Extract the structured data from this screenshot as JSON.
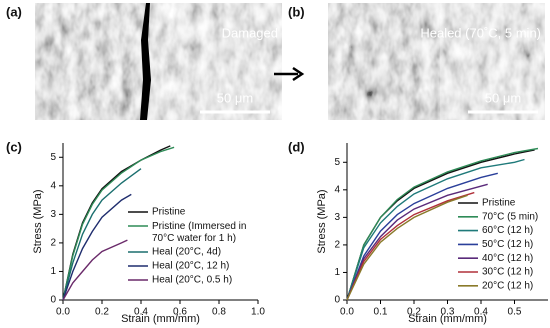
{
  "images": [
    {
      "label": "(a)",
      "caption": "Damaged",
      "scale_bar": "50 μm"
    },
    {
      "label": "(b)",
      "caption": "Healed (70˚C, 5 min)",
      "scale_bar": "50 μm"
    }
  ],
  "chart_data": [
    {
      "type": "line",
      "panel_label": "(c)",
      "x_label": "Strain (mm/mm)",
      "y_label": "Stress (MPa)",
      "xlim": [
        0,
        1
      ],
      "xticks": [
        {
          "value": 0,
          "label": "0.0"
        },
        0.2,
        0.4,
        0.6,
        0.8,
        {
          "value": 1,
          "label": "1.0"
        }
      ],
      "ylim": [
        0,
        5.5
      ],
      "yticks": [
        0,
        1,
        2,
        3,
        4,
        5
      ],
      "series": [
        {
          "name": "Pristine",
          "color": "#111111",
          "x": [
            0,
            0.05,
            0.1,
            0.15,
            0.2,
            0.3,
            0.4,
            0.5,
            0.55
          ],
          "values": [
            0,
            1.6,
            2.7,
            3.4,
            3.9,
            4.5,
            4.9,
            5.25,
            5.4
          ]
        },
        {
          "name": "Pristine (Immersed in\n70°C water for 1 h)",
          "color": "#2e8b57",
          "x": [
            0,
            0.05,
            0.1,
            0.15,
            0.2,
            0.3,
            0.4,
            0.5,
            0.57
          ],
          "values": [
            0,
            1.55,
            2.65,
            3.35,
            3.85,
            4.45,
            4.9,
            5.2,
            5.35
          ]
        },
        {
          "name": "Heal (20°C, 4d)",
          "color": "#1b6f6f",
          "x": [
            0,
            0.05,
            0.1,
            0.15,
            0.2,
            0.3,
            0.4
          ],
          "values": [
            0,
            1.3,
            2.3,
            3.0,
            3.5,
            4.1,
            4.6
          ]
        },
        {
          "name": "Heal (20°C, 12 h)",
          "color": "#1f2d6e",
          "x": [
            0,
            0.05,
            0.1,
            0.15,
            0.2,
            0.3,
            0.35
          ],
          "values": [
            0,
            1.0,
            1.8,
            2.4,
            2.9,
            3.5,
            3.7
          ]
        },
        {
          "name": "Heal (20°C, 0.5 h)",
          "color": "#6a2a6a",
          "x": [
            0,
            0.05,
            0.1,
            0.15,
            0.2,
            0.3,
            0.33
          ],
          "values": [
            0,
            0.6,
            1.0,
            1.4,
            1.7,
            2.0,
            2.1
          ]
        }
      ]
    },
    {
      "type": "line",
      "panel_label": "(d)",
      "x_label": "Strain (mm/mm)",
      "y_label": "Stress (MPa)",
      "xlim": [
        0,
        0.6
      ],
      "xticks": [
        {
          "value": 0,
          "label": "0.0"
        },
        0.1,
        0.2,
        0.3,
        0.4,
        0.5
      ],
      "ylim": [
        0,
        5.7
      ],
      "yticks": [
        0,
        1,
        2,
        3,
        4,
        5
      ],
      "series": [
        {
          "name": "Pristine",
          "color": "#111111",
          "x": [
            0,
            0.05,
            0.1,
            0.15,
            0.2,
            0.3,
            0.4,
            0.5,
            0.56
          ],
          "values": [
            0,
            2.0,
            3.0,
            3.6,
            4.05,
            4.6,
            5.0,
            5.3,
            5.45
          ]
        },
        {
          "name": "70°C (5 min)",
          "color": "#2e8b57",
          "x": [
            0,
            0.05,
            0.1,
            0.15,
            0.2,
            0.3,
            0.4,
            0.5,
            0.57
          ],
          "values": [
            0,
            2.0,
            3.0,
            3.65,
            4.1,
            4.65,
            5.05,
            5.35,
            5.5
          ]
        },
        {
          "name": "60°C (12 h)",
          "color": "#1f7a7a",
          "x": [
            0,
            0.05,
            0.1,
            0.15,
            0.2,
            0.3,
            0.4,
            0.5,
            0.53
          ],
          "values": [
            0,
            1.9,
            2.8,
            3.4,
            3.85,
            4.4,
            4.8,
            5.0,
            5.1
          ]
        },
        {
          "name": "50°C (12 h)",
          "color": "#2a3f9a",
          "x": [
            0,
            0.05,
            0.1,
            0.15,
            0.2,
            0.3,
            0.4,
            0.45
          ],
          "values": [
            0,
            1.6,
            2.5,
            3.1,
            3.5,
            4.05,
            4.45,
            4.6
          ]
        },
        {
          "name": "40°C (12 h)",
          "color": "#5a2a7a",
          "x": [
            0,
            0.05,
            0.1,
            0.15,
            0.2,
            0.3,
            0.42
          ],
          "values": [
            0,
            1.5,
            2.3,
            2.9,
            3.3,
            3.8,
            4.2
          ]
        },
        {
          "name": "30°C (12 h)",
          "color": "#b0303a",
          "x": [
            0,
            0.05,
            0.1,
            0.15,
            0.2,
            0.3,
            0.38
          ],
          "values": [
            0,
            1.4,
            2.2,
            2.7,
            3.1,
            3.6,
            3.9
          ]
        },
        {
          "name": "20°C (12 h)",
          "color": "#8a7a2a",
          "x": [
            0,
            0.05,
            0.1,
            0.15,
            0.2,
            0.3,
            0.36
          ],
          "values": [
            0,
            1.3,
            2.1,
            2.6,
            3.0,
            3.55,
            3.8
          ]
        }
      ]
    }
  ]
}
